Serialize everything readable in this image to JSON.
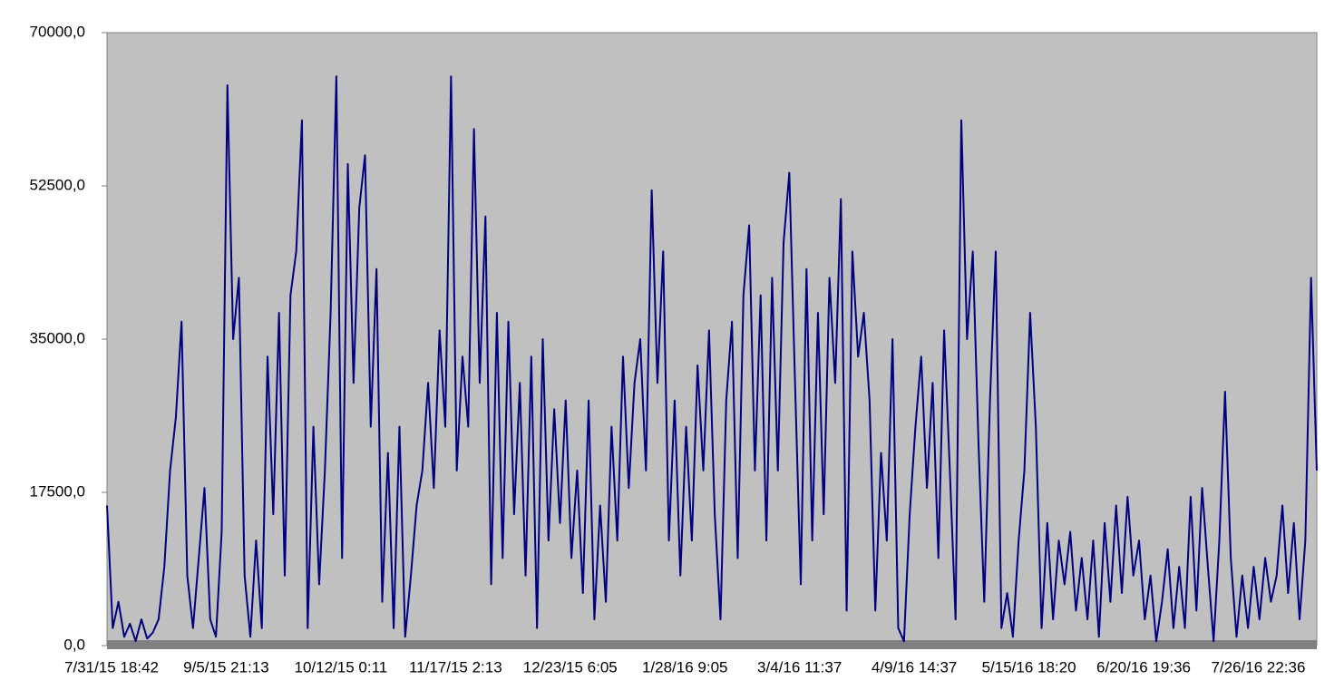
{
  "chart_data": {
    "type": "line",
    "color": "#000080",
    "background": "#c0c0c0",
    "grid": false,
    "ylim": [
      0,
      70000
    ],
    "yticks": [
      {
        "value": 0,
        "label": "0,0"
      },
      {
        "value": 17500,
        "label": "17500,0"
      },
      {
        "value": 35000,
        "label": "35000,0"
      },
      {
        "value": 52500,
        "label": "52500,0"
      },
      {
        "value": 70000,
        "label": "70000,0"
      }
    ],
    "categories": [
      "7/31/15 18:42",
      null,
      null,
      null,
      null,
      null,
      null,
      null,
      null,
      null,
      null,
      null,
      null,
      null,
      null,
      null,
      null,
      null,
      null,
      null,
      "9/5/15 21:13",
      null,
      null,
      null,
      null,
      null,
      null,
      null,
      null,
      null,
      null,
      null,
      null,
      null,
      null,
      null,
      null,
      null,
      null,
      null,
      "10/12/15 0:11",
      null,
      null,
      null,
      null,
      null,
      null,
      null,
      null,
      null,
      null,
      null,
      null,
      null,
      null,
      null,
      null,
      null,
      null,
      null,
      "11/17/15 2:13",
      null,
      null,
      null,
      null,
      null,
      null,
      null,
      null,
      null,
      null,
      null,
      null,
      null,
      null,
      null,
      null,
      null,
      null,
      null,
      "12/23/15 6:05",
      null,
      null,
      null,
      null,
      null,
      null,
      null,
      null,
      null,
      null,
      null,
      null,
      null,
      null,
      null,
      null,
      null,
      null,
      null,
      "1/28/16 9:05",
      null,
      null,
      null,
      null,
      null,
      null,
      null,
      null,
      null,
      null,
      null,
      null,
      null,
      null,
      null,
      null,
      null,
      null,
      null,
      "3/4/16 11:37",
      null,
      null,
      null,
      null,
      null,
      null,
      null,
      null,
      null,
      null,
      null,
      null,
      null,
      null,
      null,
      null,
      null,
      null,
      null,
      "4/9/16 14:37",
      null,
      null,
      null,
      null,
      null,
      null,
      null,
      null,
      null,
      null,
      null,
      null,
      null,
      null,
      null,
      null,
      null,
      null,
      null,
      "5/15/16 18:20",
      null,
      null,
      null,
      null,
      null,
      null,
      null,
      null,
      null,
      null,
      null,
      null,
      null,
      null,
      null,
      null,
      null,
      null,
      null,
      "6/20/16 19:36",
      null,
      null,
      null,
      null,
      null,
      null,
      null,
      null,
      null,
      null,
      null,
      null,
      null,
      null,
      null,
      null,
      null,
      null,
      null,
      "7/26/16 22:36",
      null,
      null,
      null,
      null,
      null,
      null,
      null,
      null,
      null,
      null,
      null
    ],
    "values": [
      16000,
      2000,
      5000,
      1000,
      2500,
      500,
      3000,
      800,
      1500,
      3000,
      9000,
      20000,
      26000,
      37000,
      8000,
      2000,
      10000,
      18000,
      3000,
      1000,
      13000,
      64000,
      35000,
      42000,
      8000,
      1000,
      12000,
      2000,
      33000,
      15000,
      38000,
      8000,
      40000,
      45000,
      60000,
      2000,
      25000,
      7000,
      20000,
      38000,
      65000,
      10000,
      55000,
      30000,
      50000,
      56000,
      25000,
      43000,
      5000,
      22000,
      2000,
      25000,
      1000,
      8000,
      16000,
      20000,
      30000,
      18000,
      36000,
      25000,
      65000,
      20000,
      33000,
      25000,
      59000,
      30000,
      49000,
      7000,
      38000,
      10000,
      37000,
      15000,
      30000,
      8000,
      33000,
      2000,
      35000,
      12000,
      27000,
      14000,
      28000,
      10000,
      20000,
      6000,
      28000,
      3000,
      16000,
      5000,
      25000,
      12000,
      33000,
      18000,
      30000,
      35000,
      20000,
      52000,
      30000,
      45000,
      12000,
      28000,
      8000,
      25000,
      12000,
      32000,
      20000,
      36000,
      15000,
      3000,
      28000,
      37000,
      10000,
      40000,
      48000,
      20000,
      40000,
      12000,
      42000,
      20000,
      46000,
      54000,
      30000,
      7000,
      43000,
      12000,
      38000,
      15000,
      42000,
      30000,
      51000,
      4000,
      45000,
      33000,
      38000,
      28000,
      4000,
      22000,
      12000,
      35000,
      2000,
      500,
      15000,
      25000,
      33000,
      18000,
      30000,
      10000,
      36000,
      20000,
      3000,
      60000,
      35000,
      45000,
      23000,
      5000,
      28000,
      45000,
      2000,
      6000,
      1000,
      12000,
      20000,
      38000,
      25000,
      2000,
      14000,
      3000,
      12000,
      7000,
      13000,
      4000,
      10000,
      3000,
      12000,
      1000,
      14000,
      5000,
      16000,
      6000,
      17000,
      8000,
      12000,
      3000,
      8000,
      500,
      5000,
      11000,
      2000,
      9000,
      2000,
      17000,
      4000,
      18000,
      9000,
      500,
      12000,
      29000,
      10000,
      1000,
      8000,
      2000,
      9000,
      3000,
      10000,
      5000,
      8000,
      16000,
      6000,
      14000,
      3000,
      12000,
      42000,
      20000
    ]
  }
}
